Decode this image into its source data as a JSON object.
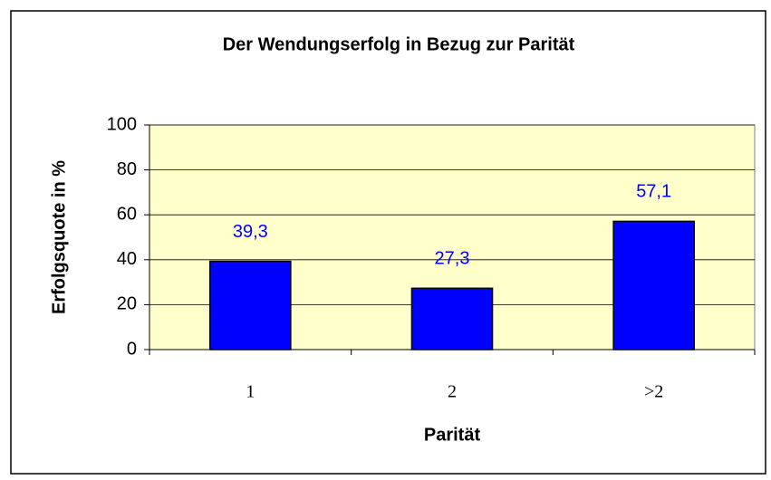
{
  "chart_data": {
    "type": "bar",
    "title": "Der Wendungserfolg in Bezug zur Parität",
    "x_label": "Parität",
    "y_label": "Erfolgsquote in %",
    "categories": [
      "1",
      "2",
      ">2"
    ],
    "values": [
      39.3,
      27.3,
      57.1
    ],
    "value_labels": [
      "39,3",
      "27,3",
      "57,1"
    ],
    "color": "#0000ff",
    "ylim": [
      0,
      100
    ],
    "yticks": [
      0,
      20,
      40,
      60,
      80,
      100
    ],
    "grid": true
  }
}
